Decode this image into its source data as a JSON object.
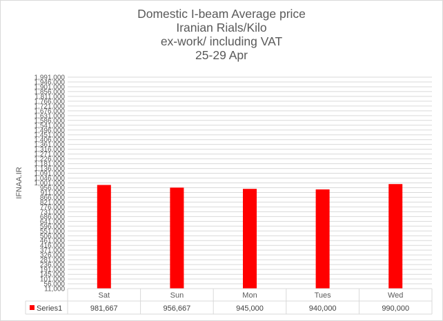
{
  "chart_data": {
    "type": "bar",
    "title_lines": [
      "Domestic I-beam Average price",
      "Iranian Rials/Kilo",
      "ex-work/ including VAT",
      "25-29 Apr"
    ],
    "ylabel": "IFNAA.IR",
    "xlabel": "",
    "categories": [
      "Sat",
      "Sun",
      "Mon",
      "Tues",
      "Wed"
    ],
    "series": [
      {
        "name": "Series1",
        "values": [
          981667,
          956667,
          945000,
          940000,
          990000
        ],
        "value_labels": [
          "981,667",
          "956,667",
          "945,000",
          "940,000",
          "990,000"
        ],
        "color": "#ff0000"
      }
    ],
    "ylim": [
      11000,
      1991000
    ],
    "y_ticks": [
      11000,
      56000,
      101000,
      145000,
      191000,
      236000,
      281000,
      326000,
      371000,
      416000,
      461000,
      506000,
      551000,
      596000,
      641000,
      686000,
      731000,
      776000,
      821000,
      866000,
      911000,
      956000,
      1001000,
      1046000,
      1091000,
      1136000,
      1181000,
      1226000,
      1271000,
      1316000,
      1361000,
      1406000,
      1451000,
      1496000,
      1541000,
      1586000,
      1631000,
      1676000,
      1721000,
      1766000,
      1811000,
      1856000,
      1901000,
      1946000,
      1991000
    ],
    "y_tick_labels": [
      "11,000",
      "56,000",
      "101,000",
      "145,000",
      "191,000",
      "236,000",
      "281,000",
      "326,000",
      "371,000",
      "416,000",
      "461,000",
      "506,000",
      "551,000",
      "596,000",
      "641,000",
      "686,000",
      "731,000",
      "776,000",
      "821,000",
      "866,000",
      "911,000",
      "956,000",
      "1,001,000",
      "1,046,000",
      "1,091,000",
      "1,136,000",
      "1,181,000",
      "1,226,000",
      "1,271,000",
      "1,316,000",
      "1,361,000",
      "1,406,000",
      "1,451,000",
      "1,496,000",
      "1,541,000",
      "1,586,000",
      "1,631,000",
      "1,676,000",
      "1,721,000",
      "1,766,000",
      "1,811,000",
      "1,856,000",
      "1,901,000",
      "1,946,000",
      "1,991,000"
    ],
    "grid": true,
    "data_table": true,
    "legend": "data-table"
  }
}
